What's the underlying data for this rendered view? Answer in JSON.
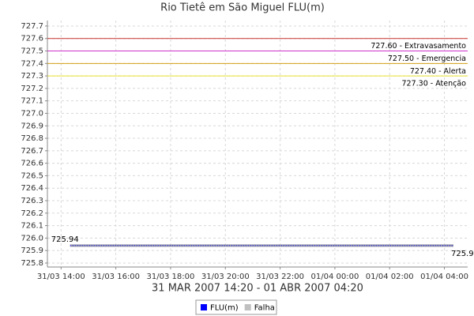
{
  "chart_data": {
    "type": "line",
    "title": "Rio Tietê em São Miguel FLU(m)",
    "x_label": "31 MAR 2007 14:20 - 01 ABR 2007 04:20",
    "series": [
      {
        "name": "FLU(m)",
        "color": "#0000ff",
        "x": [
          14.33,
          28.33
        ],
        "values": [
          725.94,
          725.94
        ]
      },
      {
        "name": "Falha",
        "color": "#c0c0c0",
        "x": [],
        "values": []
      }
    ],
    "annotations": [
      {
        "value": 727.6,
        "label": "727.60 - Extravasamento",
        "color": "#cc3333"
      },
      {
        "value": 727.5,
        "label": "727.50 - Emergencia",
        "color": "#cc33cc"
      },
      {
        "value": 727.4,
        "label": "727.40 - Alerta",
        "color": "#d4a017"
      },
      {
        "value": 727.3,
        "label": "727.30 - Atenção",
        "color": "#e8e030"
      }
    ],
    "xlim": [
      13.5,
      28.85
    ],
    "xticks": [
      {
        "value": 14,
        "label": "31/03 14:00"
      },
      {
        "value": 16,
        "label": "31/03 16:00"
      },
      {
        "value": 18,
        "label": "31/03 18:00"
      },
      {
        "value": 20,
        "label": "31/03 20:00"
      },
      {
        "value": 22,
        "label": "31/03 22:00"
      },
      {
        "value": 24,
        "label": "01/04 00:00"
      },
      {
        "value": 26,
        "label": "01/04 02:00"
      },
      {
        "value": 28,
        "label": "01/04 04:00"
      }
    ],
    "ylim": [
      725.768,
      727.744
    ],
    "yticks": [
      725.8,
      725.9,
      {
        "value": 726.0,
        "label": "726.0"
      },
      726.1,
      726.2,
      726.3,
      726.4,
      726.5,
      726.6,
      726.7,
      726.8,
      726.9,
      {
        "value": 727.0,
        "label": "727.0"
      },
      727.1,
      727.2,
      727.3,
      727.4,
      727.5,
      727.6,
      727.7
    ],
    "grid": true
  }
}
